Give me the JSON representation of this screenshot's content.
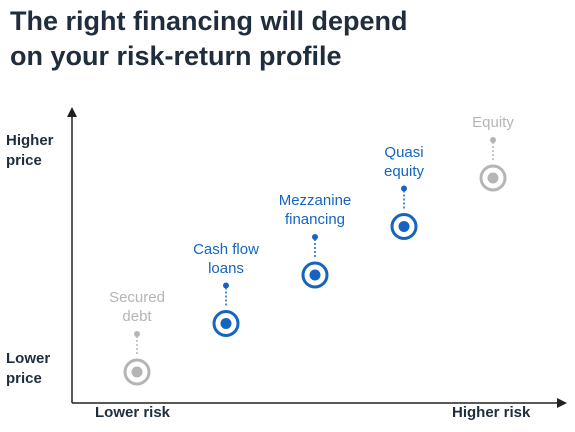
{
  "title": {
    "line1": "The right financing will depend",
    "line2": "on your risk-return profile"
  },
  "y_axis": {
    "top_label": [
      "Higher",
      "price"
    ],
    "bottom_label": [
      "Lower",
      "price"
    ]
  },
  "x_axis": {
    "left_label": "Lower risk",
    "right_label": "Higher risk"
  },
  "colors": {
    "active": "#1565c0",
    "inactive": "#b5b5b5",
    "text": "#1f2d3d",
    "axis": "#222222"
  },
  "items": [
    {
      "label": [
        "Secured",
        "debt"
      ],
      "risk": 1,
      "price": 1,
      "highlighted": false
    },
    {
      "label": [
        "Cash flow",
        "loans"
      ],
      "risk": 2,
      "price": 2,
      "highlighted": true
    },
    {
      "label": [
        "Mezzanine",
        "financing"
      ],
      "risk": 3,
      "price": 3,
      "highlighted": true
    },
    {
      "label": [
        "Quasi",
        "equity"
      ],
      "risk": 4,
      "price": 4,
      "highlighted": true
    },
    {
      "label": [
        "Equity"
      ],
      "risk": 5,
      "price": 5,
      "highlighted": false
    }
  ]
}
